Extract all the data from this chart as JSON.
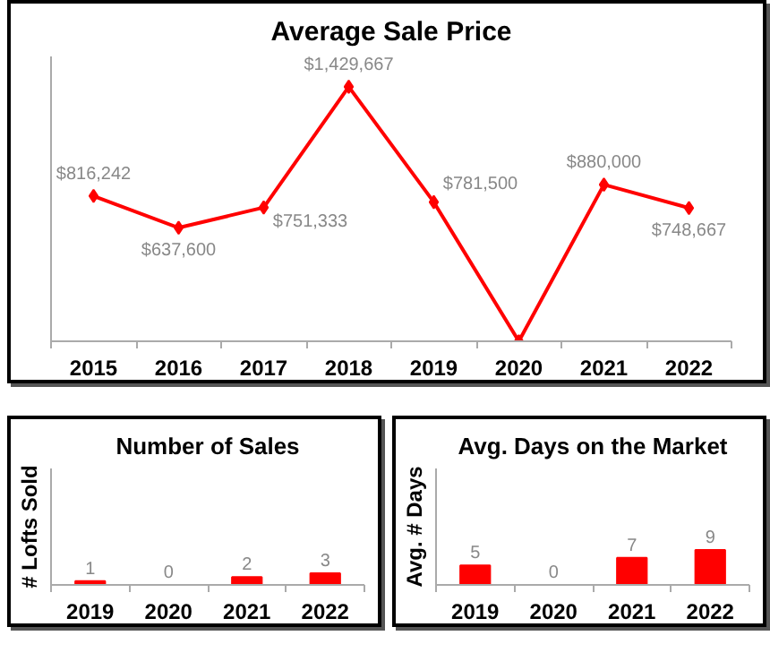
{
  "chart_data": [
    {
      "type": "line",
      "title": "Average Sale Price",
      "categories": [
        "2015",
        "2016",
        "2017",
        "2018",
        "2019",
        "2020",
        "2021",
        "2022"
      ],
      "series": [
        {
          "color": "#ff0000",
          "values": [
            816242,
            637600,
            751333,
            1429667,
            781500,
            0,
            880000,
            748667
          ],
          "value_labels": [
            "$816,242",
            "$637,600",
            "$751,333",
            "$1,429,667",
            "$781,500",
            null,
            "$880,000",
            "$748,667"
          ]
        }
      ],
      "ylim": [
        0,
        1600000
      ],
      "tick_labels": "x",
      "marker": "diamond",
      "grid": false
    },
    {
      "type": "bar",
      "title": "Number of Sales",
      "ylabel": "# Lofts Sold",
      "categories": [
        "2019",
        "2020",
        "2021",
        "2022"
      ],
      "series": [
        {
          "color": "#ff0000",
          "values": [
            1,
            0,
            2,
            3
          ]
        }
      ],
      "ylim": [
        0,
        30
      ],
      "tick_labels": "x",
      "data_labels": true,
      "grid": false
    },
    {
      "type": "bar",
      "title": "Avg. Days on the Market",
      "ylabel": "Avg. # Days",
      "categories": [
        "2019",
        "2020",
        "2021",
        "2022"
      ],
      "series": [
        {
          "color": "#ff0000",
          "values": [
            5,
            0,
            7,
            9
          ]
        }
      ],
      "ylim": [
        0,
        30
      ],
      "tick_labels": "x",
      "data_labels": true,
      "grid": false
    }
  ]
}
